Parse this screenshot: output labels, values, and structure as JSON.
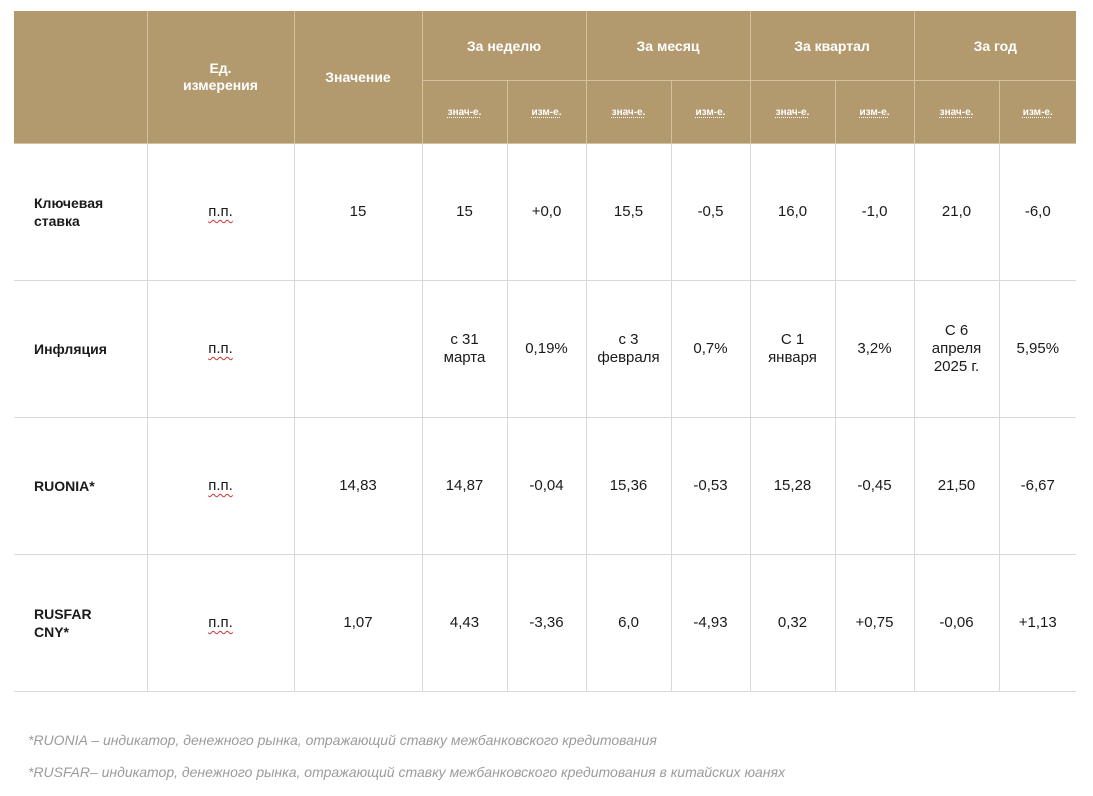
{
  "header": {
    "unit": "Ед.\nизмерения",
    "value": "Значение",
    "periods": [
      "За неделю",
      "За месяц",
      "За квартал",
      "За год"
    ],
    "sub_value": "знач-е.",
    "sub_change": "изм-е."
  },
  "rows": [
    {
      "metric": "Ключевая\nставка",
      "unit": "п.п.",
      "value": "15",
      "week": "15",
      "week_chg": "+0,0",
      "month": "15,5",
      "month_chg": "-0,5",
      "quarter": "16,0",
      "quarter_chg": "-1,0",
      "year": "21,0",
      "year_chg": "-6,0"
    },
    {
      "metric": "Инфляция",
      "unit": "п.п.",
      "value": "",
      "week": "с 31\nмарта",
      "week_chg": "0,19%",
      "month": "с 3\nфевраля",
      "month_chg": "0,7%",
      "quarter": "С 1\nянваря",
      "quarter_chg": "3,2%",
      "year": "С 6\nапреля\n2025 г.",
      "year_chg": "5,95%"
    },
    {
      "metric": "RUONIA*",
      "unit": "п.п.",
      "value": "14,83",
      "week": "14,87",
      "week_chg": "-0,04",
      "month": "15,36",
      "month_chg": "-0,53",
      "quarter": "15,28",
      "quarter_chg": "-0,45",
      "year": "21,50",
      "year_chg": "-6,67"
    },
    {
      "metric": "RUSFAR\nCNY*",
      "unit": "п.п.",
      "value": "1,07",
      "week": "4,43",
      "week_chg": "-3,36",
      "month": "6,0",
      "month_chg": "-4,93",
      "quarter": "0,32",
      "quarter_chg": "+0,75",
      "year": "-0,06",
      "year_chg": "+1,13"
    }
  ],
  "footnotes": [
    "*RUONIA – индикатор, денежного рынка, отражающий ставку межбанковского кредитования",
    "*RUSFAR– индикатор, денежного рынка, отражающий ставку межбанковского кредитования в китайских юанях"
  ]
}
